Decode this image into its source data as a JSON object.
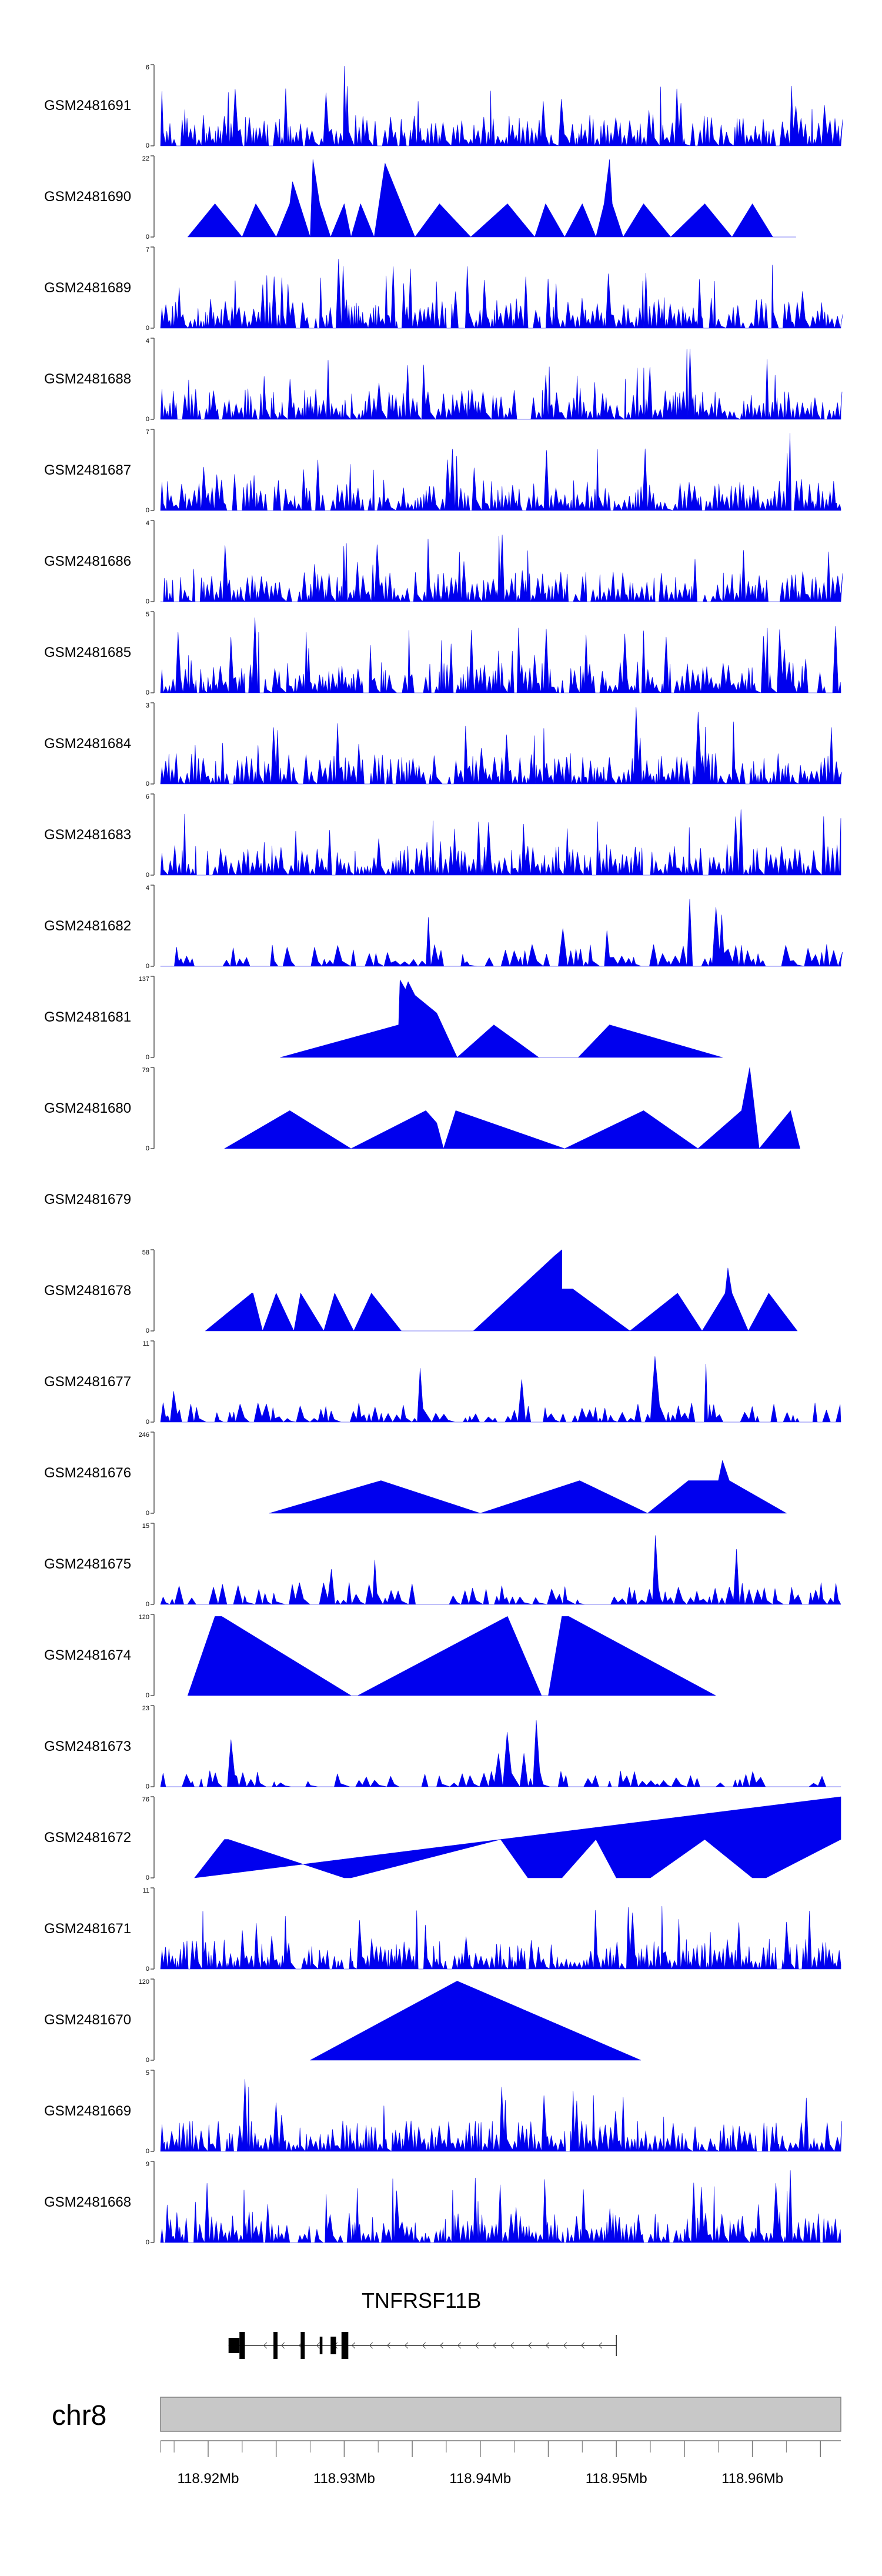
{
  "colors": {
    "signal": "#0000ee",
    "axis": "#555555",
    "ideogram_fill": "#c8c8c8",
    "ideogram_stroke": "#808080",
    "gene": "#000000"
  },
  "chart_data": {
    "type": "area",
    "title": "",
    "xlabel": "",
    "ylabel": "",
    "xlim_mb": [
      118.9165,
      118.9665
    ],
    "tracks": [
      {
        "name": "GSM2481691",
        "ymax": 6,
        "ylabels": [
          "6",
          "0"
        ],
        "style": "dense",
        "start_mb": 118.9165,
        "end_mb": 118.9665,
        "seed": 11,
        "peaks": [
          [
            118.93,
            1.0
          ],
          [
            118.9545,
            0.75
          ],
          [
            118.9525,
            0.5
          ]
        ]
      },
      {
        "name": "GSM2481690",
        "ymax": 22,
        "ylabels": [
          "22",
          "0"
        ],
        "style": "triangles",
        "points": [
          [
            118.9185,
            0
          ],
          [
            118.9205,
            9
          ],
          [
            118.9225,
            0
          ],
          [
            118.9235,
            9
          ],
          [
            118.925,
            0
          ],
          [
            118.926,
            9
          ],
          [
            118.9262,
            15
          ],
          [
            118.9275,
            0
          ],
          [
            118.9277,
            21
          ],
          [
            118.9282,
            9
          ],
          [
            118.929,
            0
          ],
          [
            118.93,
            9
          ],
          [
            118.9305,
            0
          ],
          [
            118.9312,
            9
          ],
          [
            118.9322,
            0
          ],
          [
            118.933,
            20
          ],
          [
            118.9342,
            9
          ],
          [
            118.9352,
            0
          ],
          [
            118.937,
            9
          ],
          [
            118.9393,
            0
          ],
          [
            118.942,
            9
          ],
          [
            118.944,
            0
          ],
          [
            118.9448,
            9
          ],
          [
            118.9462,
            0
          ],
          [
            118.9475,
            9
          ],
          [
            118.9485,
            0
          ],
          [
            118.9491,
            9
          ],
          [
            118.9495,
            21
          ],
          [
            118.9497,
            9
          ],
          [
            118.9505,
            0
          ],
          [
            118.952,
            9
          ],
          [
            118.954,
            0
          ],
          [
            118.9565,
            9
          ],
          [
            118.9585,
            0
          ],
          [
            118.96,
            9
          ],
          [
            118.9615,
            0
          ],
          [
            118.9632,
            0
          ]
        ]
      },
      {
        "name": "GSM2481689",
        "ymax": 7,
        "ylabels": [
          "7",
          "0"
        ],
        "style": "dense",
        "start_mb": 118.9165,
        "end_mb": 118.9665,
        "seed": 23,
        "peaks": [
          [
            118.9295,
            0.95
          ],
          [
            118.9578,
            1.0
          ],
          [
            118.939,
            0.8
          ]
        ]
      },
      {
        "name": "GSM2481688",
        "ymax": 4,
        "ylabels": [
          "4",
          "0"
        ],
        "style": "dense",
        "start_mb": 118.9165,
        "end_mb": 118.9665,
        "seed": 37,
        "peaks": [
          [
            118.9553,
            1.0
          ],
          [
            118.945,
            0.7
          ]
        ]
      },
      {
        "name": "GSM2481687",
        "ymax": 7,
        "ylabels": [
          "7",
          "0"
        ],
        "style": "dense",
        "start_mb": 118.9165,
        "end_mb": 118.9665,
        "seed": 41,
        "peaks": [
          [
            118.9628,
            1.0
          ],
          [
            118.9375,
            0.7
          ]
        ]
      },
      {
        "name": "GSM2481686",
        "ymax": 4,
        "ylabels": [
          "4",
          "0"
        ],
        "style": "dense",
        "start_mb": 118.9165,
        "end_mb": 118.9665,
        "seed": 53,
        "peaks": [
          [
            118.9415,
            0.95
          ],
          [
            118.9255,
            0.7
          ]
        ]
      },
      {
        "name": "GSM2481685",
        "ymax": 5,
        "ylabels": [
          "5",
          "0"
        ],
        "style": "dense",
        "start_mb": 118.9165,
        "end_mb": 118.9665,
        "seed": 67,
        "peaks": [
          [
            118.9235,
            1.0
          ],
          [
            118.961,
            0.9
          ],
          [
            118.966,
            0.95
          ]
        ]
      },
      {
        "name": "GSM2481684",
        "ymax": 3,
        "ylabels": [
          "3",
          "0"
        ],
        "style": "dense",
        "start_mb": 118.9165,
        "end_mb": 118.9665,
        "seed": 71,
        "peaks": [
          [
            118.9515,
            1.0
          ],
          [
            118.956,
            0.9
          ],
          [
            118.9248,
            0.7
          ]
        ]
      },
      {
        "name": "GSM2481683",
        "ymax": 6,
        "ylabels": [
          "6",
          "0"
        ],
        "style": "dense",
        "start_mb": 118.9165,
        "end_mb": 118.9665,
        "seed": 83,
        "peaks": [
          [
            118.959,
            1.0
          ],
          [
            118.965,
            0.85
          ]
        ]
      },
      {
        "name": "GSM2481682",
        "ymax": 4,
        "ylabels": [
          "4",
          "0"
        ],
        "style": "sparse",
        "start_mb": 118.9165,
        "end_mb": 118.9665,
        "seed": 97,
        "peaks": [
          [
            118.9268,
            1.0
          ],
          [
            118.9555,
            0.95
          ],
          [
            118.9575,
            0.9
          ]
        ]
      },
      {
        "name": "GSM2481681",
        "ymax": 137,
        "ylabels": [
          "137",
          "0"
        ],
        "style": "triangles",
        "points": [
          [
            118.9253,
            0
          ],
          [
            118.934,
            55
          ],
          [
            118.9341,
            131
          ],
          [
            118.9345,
            115
          ],
          [
            118.9347,
            128
          ],
          [
            118.9352,
            105
          ],
          [
            118.9368,
            75
          ],
          [
            118.9383,
            0
          ],
          [
            118.941,
            55
          ],
          [
            118.9443,
            0
          ],
          [
            118.9472,
            0
          ],
          [
            118.9495,
            55
          ],
          [
            118.9578,
            0
          ]
        ]
      },
      {
        "name": "GSM2481680",
        "ymax": 79,
        "ylabels": [
          "79",
          "0"
        ],
        "style": "triangles",
        "points": [
          [
            118.9212,
            0
          ],
          [
            118.926,
            37
          ],
          [
            118.9305,
            0
          ],
          [
            118.936,
            37
          ],
          [
            118.9368,
            25
          ],
          [
            118.9373,
            0
          ],
          [
            118.9382,
            37
          ],
          [
            118.9462,
            0
          ],
          [
            118.952,
            37
          ],
          [
            118.956,
            0
          ],
          [
            118.9592,
            37
          ],
          [
            118.9598,
            79
          ],
          [
            118.9605,
            0
          ],
          [
            118.9628,
            37
          ],
          [
            118.9635,
            0
          ]
        ]
      },
      {
        "name": "GSM2481679",
        "ymax": 0,
        "ylabels": [],
        "style": "empty"
      },
      {
        "name": "GSM2481678",
        "ymax": 58,
        "ylabels": [
          "58",
          "0"
        ],
        "style": "triangles",
        "points": [
          [
            118.9198,
            0
          ],
          [
            118.9232,
            27
          ],
          [
            118.9233,
            27
          ],
          [
            118.924,
            0
          ],
          [
            118.925,
            27
          ],
          [
            118.9263,
            0
          ],
          [
            118.9268,
            27
          ],
          [
            118.9285,
            0
          ],
          [
            118.9293,
            27
          ],
          [
            118.9307,
            0
          ],
          [
            118.932,
            27
          ],
          [
            118.9342,
            0
          ],
          [
            118.9395,
            0
          ],
          [
            118.9455,
            54
          ],
          [
            118.946,
            58
          ],
          [
            118.946,
            30
          ],
          [
            118.9468,
            30
          ],
          [
            118.951,
            0
          ],
          [
            118.9545,
            27
          ],
          [
            118.9563,
            0
          ],
          [
            118.958,
            27
          ],
          [
            118.9582,
            45
          ],
          [
            118.9585,
            27
          ],
          [
            118.9597,
            0
          ],
          [
            118.9612,
            27
          ],
          [
            118.9633,
            0
          ]
        ]
      },
      {
        "name": "GSM2481677",
        "ymax": 11,
        "ylabels": [
          "11",
          "0"
        ],
        "style": "sparse",
        "start_mb": 118.9165,
        "end_mb": 118.9665,
        "seed": 101,
        "base": 0.18,
        "peaks": [
          [
            118.953,
            1.0
          ],
          [
            118.956,
            0.35
          ]
        ]
      },
      {
        "name": "GSM2481676",
        "ymax": 246,
        "ylabels": [
          "246",
          "0"
        ],
        "style": "triangles",
        "points": [
          [
            118.9245,
            0
          ],
          [
            118.9327,
            99
          ],
          [
            118.94,
            0
          ],
          [
            118.9473,
            99
          ],
          [
            118.9523,
            0
          ],
          [
            118.9553,
            99
          ],
          [
            118.9575,
            99
          ],
          [
            118.9578,
            160
          ],
          [
            118.9583,
            99
          ],
          [
            118.9625,
            0
          ]
        ]
      },
      {
        "name": "GSM2481675",
        "ymax": 15,
        "ylabels": [
          "15",
          "0"
        ],
        "style": "sparse",
        "start_mb": 118.9165,
        "end_mb": 118.9665,
        "seed": 113,
        "base": 0.2,
        "peaks": [
          [
            118.953,
            1.0
          ],
          [
            118.9548,
            0.3
          ]
        ]
      },
      {
        "name": "GSM2481674",
        "ymax": 120,
        "ylabels": [
          "120",
          "0"
        ],
        "style": "triangles",
        "points": [
          [
            118.9185,
            0
          ],
          [
            118.9205,
            117
          ],
          [
            118.921,
            117
          ],
          [
            118.9305,
            0
          ],
          [
            118.931,
            0
          ],
          [
            118.942,
            117
          ],
          [
            118.9445,
            0
          ],
          [
            118.945,
            0
          ],
          [
            118.946,
            117
          ],
          [
            118.9465,
            117
          ],
          [
            118.9573,
            0
          ]
        ]
      },
      {
        "name": "GSM2481673",
        "ymax": 23,
        "ylabels": [
          "23",
          "0"
        ],
        "style": "sparse",
        "start_mb": 118.9165,
        "end_mb": 118.9665,
        "seed": 127,
        "base": 0.15,
        "peaks": [
          [
            118.944,
            0.95
          ],
          [
            118.9452,
            0.65
          ],
          [
            118.943,
            0.55
          ]
        ]
      },
      {
        "name": "GSM2481672",
        "ymax": 76,
        "ylabels": [
          "76",
          "0"
        ],
        "style": "triangles",
        "points": [
          [
            118.919,
            0
          ],
          [
            118.9212,
            36
          ],
          [
            118.9215,
            36
          ],
          [
            118.93,
            0
          ],
          [
            118.9305,
            0
          ],
          [
            118.9415,
            36
          ],
          [
            118.9435,
            0
          ],
          [
            118.946,
            0
          ],
          [
            118.9485,
            36
          ],
          [
            118.95,
            0
          ],
          [
            118.9525,
            0
          ],
          [
            118.9565,
            36
          ],
          [
            118.96,
            0
          ],
          [
            118.961,
            0
          ],
          [
            118.9665,
            36
          ],
          [
            118.9665,
            76
          ]
        ]
      },
      {
        "name": "GSM2481671",
        "ymax": 11,
        "ylabels": [
          "11",
          "0"
        ],
        "style": "dense",
        "start_mb": 118.9165,
        "end_mb": 118.9665,
        "seed": 131,
        "peaks": [
          [
            118.951,
            0.9
          ],
          [
            118.9262,
            0.8
          ]
        ]
      },
      {
        "name": "GSM2481670",
        "ymax": 120,
        "ylabels": [
          "120",
          "0"
        ],
        "style": "triangles",
        "points": [
          [
            118.9275,
            0
          ],
          [
            118.9383,
            117
          ],
          [
            118.9518,
            0
          ]
        ]
      },
      {
        "name": "GSM2481669",
        "ymax": 5,
        "ylabels": [
          "5",
          "0"
        ],
        "style": "dense",
        "start_mb": 118.9165,
        "end_mb": 118.9665,
        "seed": 149,
        "peaks": [
          [
            118.9228,
            1.0
          ],
          [
            118.947,
            0.7
          ]
        ]
      },
      {
        "name": "GSM2481668",
        "ymax": 9,
        "ylabels": [
          "9",
          "0"
        ],
        "style": "dense",
        "start_mb": 118.9165,
        "end_mb": 118.9665,
        "seed": 157,
        "peaks": [
          [
            118.9555,
            0.95
          ],
          [
            118.9628,
            0.9
          ]
        ]
      }
    ],
    "gene": {
      "name": "TNFRSF11B",
      "strand": "-",
      "start_mb": 118.9215,
      "end_mb": 118.95,
      "exons_mb": [
        [
          118.9215,
          118.9223
        ],
        [
          118.9223,
          118.9227
        ],
        [
          118.9248,
          118.9251
        ],
        [
          118.9268,
          118.9271
        ],
        [
          118.9282,
          118.9284
        ],
        [
          118.929,
          118.9294
        ],
        [
          118.9298,
          118.9303
        ]
      ]
    },
    "ideogram": {
      "chromosome": "chr8",
      "ticks_mb": [
        118.92,
        118.925,
        118.93,
        118.935,
        118.94,
        118.945,
        118.95,
        118.955,
        118.96,
        118.965
      ],
      "minor_ticks_mb": [
        118.9165,
        118.9175,
        118.9225,
        118.9275,
        118.9325,
        118.9375,
        118.9425,
        118.9475,
        118.9525,
        118.9575,
        118.9625
      ],
      "labels": [
        {
          "mb": 118.92,
          "text": "118.92Mb"
        },
        {
          "mb": 118.93,
          "text": "118.93Mb"
        },
        {
          "mb": 118.94,
          "text": "118.94Mb"
        },
        {
          "mb": 118.95,
          "text": "118.95Mb"
        },
        {
          "mb": 118.96,
          "text": "118.96Mb"
        }
      ]
    }
  }
}
